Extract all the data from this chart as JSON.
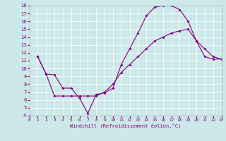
{
  "xlabel": "Windchill (Refroidissement éolien,°C)",
  "bg_color": "#cce8e8",
  "grid_color": "#ffffff",
  "line_color": "#800080",
  "xlim": [
    0,
    23
  ],
  "ylim": [
    4,
    18
  ],
  "xticks": [
    0,
    1,
    2,
    3,
    4,
    5,
    6,
    7,
    8,
    9,
    10,
    11,
    12,
    13,
    14,
    15,
    16,
    17,
    18,
    19,
    20,
    21,
    22,
    23
  ],
  "yticks": [
    4,
    5,
    6,
    7,
    8,
    9,
    10,
    11,
    12,
    13,
    14,
    15,
    16,
    17,
    18
  ],
  "curve1_x": [
    1,
    2,
    3,
    4,
    5,
    6,
    7,
    8,
    9,
    10,
    11,
    12,
    13,
    14,
    15,
    16,
    17,
    18,
    19,
    20,
    21,
    22,
    23
  ],
  "curve1_y": [
    11.5,
    9.3,
    9.2,
    7.5,
    7.5,
    6.2,
    4.3,
    6.7,
    6.9,
    7.5,
    10.5,
    12.5,
    14.5,
    16.7,
    17.8,
    18.0,
    18.0,
    17.5,
    16.0,
    13.5,
    12.5,
    11.5,
    11.2
  ],
  "curve2_x": [
    1,
    2,
    3,
    4,
    5,
    6,
    7,
    8,
    9,
    10,
    11,
    12,
    13,
    14,
    15,
    16,
    17,
    18,
    19,
    20,
    21,
    22,
    23
  ],
  "curve2_y": [
    11.5,
    9.3,
    6.5,
    6.5,
    6.5,
    6.5,
    6.5,
    6.5,
    7.0,
    8.0,
    9.5,
    10.5,
    11.5,
    12.5,
    13.5,
    14.0,
    14.5,
    14.8,
    15.0,
    13.5,
    11.5,
    11.2,
    11.2
  ]
}
